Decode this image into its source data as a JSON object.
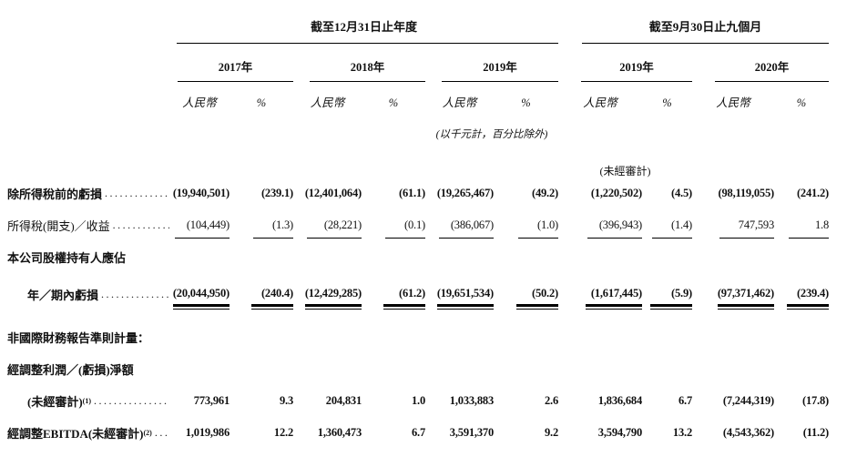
{
  "page": {
    "sections": [
      {
        "title": "截至12月31日止年度"
      },
      {
        "title": "截至9月30日止九個月"
      }
    ],
    "year_columns": [
      "2017年",
      "2018年",
      "2019年",
      "2019年",
      "2020年"
    ],
    "col_headers": {
      "currency": "人民幣",
      "percent": "%"
    },
    "notes": {
      "units": "(以千元計，百分比除外)",
      "unaudited": "(未經審計)"
    },
    "leader_dots": "................................................................",
    "rows": [
      {
        "label": "除所得稅前的虧損",
        "sup": "",
        "indent": false,
        "bold_label": true,
        "bold_values": true,
        "underline": "none",
        "values": [
          "(19,940,501)",
          "(239.1)",
          "(12,401,064)",
          "(61.1)",
          "(19,265,467)",
          "(49.2)",
          "(1,220,502)",
          "(4.5)",
          "(98,119,055)",
          "(241.2)"
        ]
      },
      {
        "label": "所得稅(開支)／收益",
        "sup": "",
        "indent": false,
        "bold_label": false,
        "bold_values": false,
        "underline": "single",
        "values": [
          "(104,449)",
          "(1.3)",
          "(28,221)",
          "(0.1)",
          "(386,067)",
          "(1.0)",
          "(396,943)",
          "(1.4)",
          "747,593",
          "1.8"
        ]
      },
      {
        "label": "本公司股權持有人應佔",
        "sup": "",
        "indent": false,
        "bold_label": true,
        "bold_values": true,
        "underline": "none",
        "values": []
      },
      {
        "label": "年／期內虧損",
        "sup": "",
        "indent": true,
        "bold_label": true,
        "bold_values": true,
        "underline": "double",
        "values": [
          "(20,044,950)",
          "(240.4)",
          "(12,429,285)",
          "(61.2)",
          "(19,651,534)",
          "(50.2)",
          "(1,617,445)",
          "(5.9)",
          "(97,371,462)",
          "(239.4)"
        ]
      },
      {
        "label": "非國際財務報告準則計量：",
        "sup": "",
        "indent": false,
        "bold_label": true,
        "bold_values": true,
        "underline": "none",
        "values": []
      },
      {
        "label": "經調整利潤／(虧損)淨額",
        "sup": "",
        "indent": false,
        "bold_label": true,
        "bold_values": true,
        "underline": "none",
        "values": []
      },
      {
        "label": "(未經審計)",
        "sup": "(1)",
        "indent": true,
        "bold_label": true,
        "bold_values": true,
        "underline": "none",
        "values": [
          "773,961",
          "9.3",
          "204,831",
          "1.0",
          "1,033,883",
          "2.6",
          "1,836,684",
          "6.7",
          "(7,244,319)",
          "(17.8)"
        ]
      },
      {
        "label": "經調整EBITDA(未經審計)",
        "sup": "(2)",
        "indent": false,
        "bold_label": true,
        "bold_values": true,
        "underline": "none",
        "values": [
          "1,019,986",
          "12.2",
          "1,360,473",
          "6.7",
          "3,591,370",
          "9.2",
          "3,594,790",
          "13.2",
          "(4,543,362)",
          "(11.2)"
        ]
      }
    ]
  }
}
